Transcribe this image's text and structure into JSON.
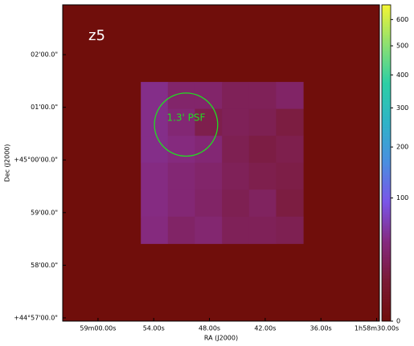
{
  "chart_data": {
    "type": "heatmap",
    "title": "z5",
    "x_label": "RA (J2000)",
    "y_label": "Dec (J2000)",
    "xlim": [
      63.8,
      29.7
    ],
    "xticks": [
      {
        "value": 60,
        "label": "59m00.00s"
      },
      {
        "value": 54,
        "label": "54.00s"
      },
      {
        "value": 48,
        "label": "48.00s"
      },
      {
        "value": 42,
        "label": "42.00s"
      },
      {
        "value": 36,
        "label": "36.00s"
      },
      {
        "value": 30,
        "label": "1h58m30.00s"
      }
    ],
    "ylim": [
      -183.7,
      176.8
    ],
    "yticks": [
      {
        "value": 120,
        "label": "02'00.0\""
      },
      {
        "value": 60,
        "label": "01'00.0\""
      },
      {
        "value": 0,
        "label": "+45°00'00.0\""
      },
      {
        "value": -60,
        "label": "59'00.0\""
      },
      {
        "value": -120,
        "label": "58'00.0\""
      },
      {
        "value": -180,
        "label": "+44°57'00.0\""
      }
    ],
    "xbins": [
      55.39,
      52.48,
      49.57,
      46.65,
      43.74,
      40.83,
      37.91
    ],
    "ybins": [
      88.9,
      58.2,
      27.5,
      -3.2,
      -33.9,
      -64.6,
      -95.3
    ],
    "values": [
      [
        45,
        30,
        30,
        22,
        22,
        28
      ],
      [
        45,
        35,
        18,
        22,
        20,
        14
      ],
      [
        45,
        40,
        35,
        20,
        15,
        18
      ],
      [
        42,
        35,
        30,
        22,
        18,
        16
      ],
      [
        42,
        35,
        28,
        20,
        25,
        14
      ],
      [
        40,
        28,
        33,
        22,
        22,
        20
      ]
    ],
    "clim": [
      0,
      660
    ],
    "cticks": [
      0,
      100,
      200,
      300,
      400,
      500,
      600
    ],
    "stretch": "sqrt",
    "colormap": [
      "#700e0b",
      "#7a1a35",
      "#852a80",
      "#7a55e8",
      "#4a8ee0",
      "#2fb3c8",
      "#2ccfa5",
      "#8ee070",
      "#f5f532"
    ],
    "psf": {
      "label": "1.3' PSF",
      "ra": 50.52,
      "dec": 40.3,
      "radius": 36,
      "color": "#22dd22"
    }
  }
}
